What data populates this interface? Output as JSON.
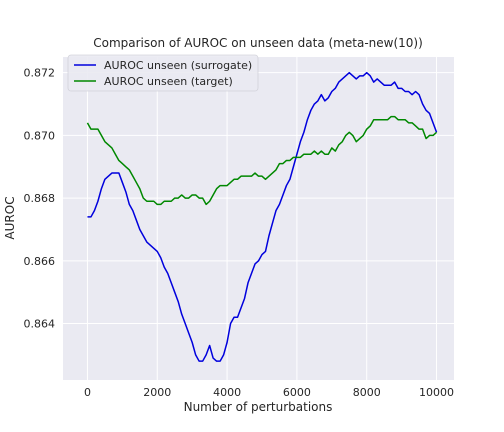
{
  "chart_data": {
    "type": "line",
    "title": "Comparison of AUROC on unseen data (meta-new(10))",
    "xlabel": "Number of perturbations",
    "ylabel": "AUROC",
    "xlim": [
      -700,
      10500
    ],
    "ylim": [
      0.8622,
      0.8725
    ],
    "xticks": [
      0,
      2000,
      4000,
      6000,
      8000,
      10000
    ],
    "xtick_labels": [
      "0",
      "2000",
      "4000",
      "6000",
      "8000",
      "10000"
    ],
    "yticks": [
      0.864,
      0.866,
      0.868,
      0.87,
      0.872
    ],
    "ytick_labels": [
      "0.864",
      "0.866",
      "0.868",
      "0.870",
      "0.872"
    ],
    "grid": true,
    "legend_position": "top-left",
    "series": [
      {
        "name": "AUROC unseen (surrogate)",
        "color": "#0000dd",
        "x": [
          0,
          100,
          200,
          300,
          400,
          500,
          600,
          700,
          800,
          900,
          1000,
          1100,
          1200,
          1300,
          1400,
          1500,
          1600,
          1700,
          1800,
          1900,
          2000,
          2100,
          2200,
          2300,
          2400,
          2500,
          2600,
          2700,
          2800,
          2900,
          3000,
          3100,
          3200,
          3300,
          3400,
          3500,
          3600,
          3700,
          3800,
          3900,
          4000,
          4100,
          4200,
          4300,
          4400,
          4500,
          4600,
          4700,
          4800,
          4900,
          5000,
          5100,
          5200,
          5300,
          5400,
          5500,
          5600,
          5700,
          5800,
          5900,
          6000,
          6100,
          6200,
          6300,
          6400,
          6500,
          6600,
          6700,
          6800,
          6900,
          7000,
          7100,
          7200,
          7300,
          7400,
          7500,
          7600,
          7700,
          7800,
          7900,
          8000,
          8100,
          8200,
          8300,
          8400,
          8500,
          8600,
          8700,
          8800,
          8900,
          9000,
          9100,
          9200,
          9300,
          9400,
          9500,
          9600,
          9700,
          9800,
          9900,
          10000
        ],
        "y": [
          0.8674,
          0.8674,
          0.8676,
          0.8679,
          0.8683,
          0.8686,
          0.8687,
          0.8688,
          0.8688,
          0.8688,
          0.8685,
          0.8682,
          0.8678,
          0.8676,
          0.8673,
          0.867,
          0.8668,
          0.8666,
          0.8665,
          0.8664,
          0.8663,
          0.8661,
          0.8658,
          0.8656,
          0.8653,
          0.865,
          0.8647,
          0.8643,
          0.864,
          0.8637,
          0.8634,
          0.863,
          0.8628,
          0.8628,
          0.863,
          0.8633,
          0.8629,
          0.8628,
          0.8628,
          0.863,
          0.8634,
          0.864,
          0.8642,
          0.8642,
          0.8645,
          0.8648,
          0.8653,
          0.8656,
          0.8659,
          0.866,
          0.8662,
          0.8663,
          0.8668,
          0.8672,
          0.8676,
          0.8678,
          0.8681,
          0.8684,
          0.8686,
          0.869,
          0.8694,
          0.8698,
          0.8701,
          0.8705,
          0.8708,
          0.871,
          0.8711,
          0.8713,
          0.8711,
          0.8712,
          0.8714,
          0.8715,
          0.8717,
          0.8718,
          0.8719,
          0.872,
          0.8719,
          0.8718,
          0.8719,
          0.8719,
          0.872,
          0.8719,
          0.8717,
          0.8718,
          0.8717,
          0.8716,
          0.8716,
          0.8716,
          0.8717,
          0.8715,
          0.8715,
          0.8714,
          0.8714,
          0.8713,
          0.8714,
          0.8713,
          0.871,
          0.8708,
          0.8707,
          0.8704,
          0.8701
        ]
      },
      {
        "name": "AUROC unseen (target)",
        "color": "#008800",
        "x": [
          0,
          100,
          200,
          300,
          400,
          500,
          600,
          700,
          800,
          900,
          1000,
          1100,
          1200,
          1300,
          1400,
          1500,
          1600,
          1700,
          1800,
          1900,
          2000,
          2100,
          2200,
          2300,
          2400,
          2500,
          2600,
          2700,
          2800,
          2900,
          3000,
          3100,
          3200,
          3300,
          3400,
          3500,
          3600,
          3700,
          3800,
          3900,
          4000,
          4100,
          4200,
          4300,
          4400,
          4500,
          4600,
          4700,
          4800,
          4900,
          5000,
          5100,
          5200,
          5300,
          5400,
          5500,
          5600,
          5700,
          5800,
          5900,
          6000,
          6100,
          6200,
          6300,
          6400,
          6500,
          6600,
          6700,
          6800,
          6900,
          7000,
          7100,
          7200,
          7300,
          7400,
          7500,
          7600,
          7700,
          7800,
          7900,
          8000,
          8100,
          8200,
          8300,
          8400,
          8500,
          8600,
          8700,
          8800,
          8900,
          9000,
          9100,
          9200,
          9300,
          9400,
          9500,
          9600,
          9700,
          9800,
          9900,
          10000
        ],
        "y": [
          0.8704,
          0.8702,
          0.8702,
          0.8702,
          0.87,
          0.8698,
          0.8697,
          0.8696,
          0.8694,
          0.8692,
          0.8691,
          0.869,
          0.8689,
          0.8687,
          0.8685,
          0.8683,
          0.868,
          0.8679,
          0.8679,
          0.8679,
          0.8678,
          0.8678,
          0.8679,
          0.8679,
          0.8679,
          0.868,
          0.868,
          0.8681,
          0.868,
          0.868,
          0.8681,
          0.8681,
          0.868,
          0.868,
          0.8678,
          0.8679,
          0.8681,
          0.8683,
          0.8684,
          0.8684,
          0.8684,
          0.8685,
          0.8686,
          0.8686,
          0.8687,
          0.8687,
          0.8687,
          0.8687,
          0.8688,
          0.8687,
          0.8687,
          0.8686,
          0.8687,
          0.8688,
          0.8689,
          0.8691,
          0.8691,
          0.8692,
          0.8692,
          0.8693,
          0.8693,
          0.8693,
          0.8694,
          0.8694,
          0.8694,
          0.8695,
          0.8694,
          0.8695,
          0.8694,
          0.8694,
          0.8696,
          0.8695,
          0.8697,
          0.8698,
          0.87,
          0.8701,
          0.87,
          0.8698,
          0.8699,
          0.87,
          0.8702,
          0.8703,
          0.8705,
          0.8705,
          0.8705,
          0.8705,
          0.8705,
          0.8706,
          0.8706,
          0.8705,
          0.8705,
          0.8705,
          0.8704,
          0.8704,
          0.8703,
          0.8702,
          0.8702,
          0.8699,
          0.87,
          0.87,
          0.8701
        ]
      }
    ]
  }
}
